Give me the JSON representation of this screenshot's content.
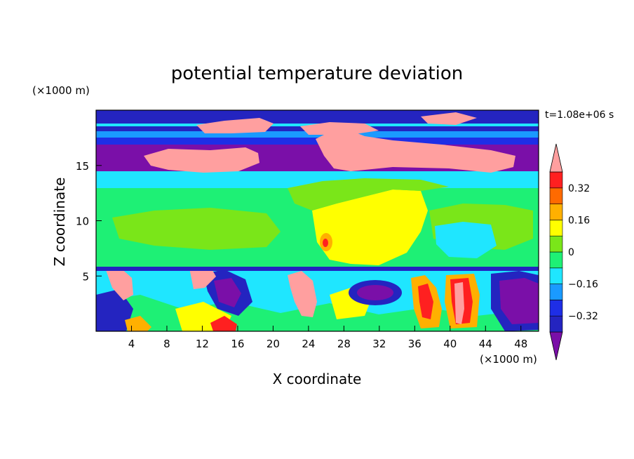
{
  "chart_data": {
    "type": "heatmap",
    "title": "potential temperature deviation",
    "time_label": "t=1.08e+06 s",
    "xlabel": "X coordinate",
    "ylabel": "Z coordinate",
    "x_unit": "(×1000 m)",
    "y_unit": "(×1000 m)",
    "xlim": [
      0,
      50
    ],
    "ylim": [
      0,
      20
    ],
    "x_ticks": [
      4,
      8,
      12,
      16,
      20,
      24,
      28,
      32,
      36,
      40,
      44,
      48
    ],
    "y_ticks": [
      5,
      10,
      15
    ],
    "colorbar": {
      "levels": [
        -0.4,
        -0.32,
        -0.24,
        -0.16,
        -0.08,
        0,
        0.08,
        0.16,
        0.24,
        0.32,
        0.4
      ],
      "labels": [
        "0.32",
        "0.16",
        "0",
        "−0.16",
        "−0.32"
      ],
      "label_values": [
        0.32,
        0.16,
        0,
        -0.16,
        -0.32
      ],
      "colors": [
        "#7a0fa8",
        "#2424c0",
        "#1e2ee6",
        "#1a9aff",
        "#1fe6ff",
        "#1ef075",
        "#7ae619",
        "#ffff00",
        "#ffb000",
        "#ff6a00",
        "#ff2020",
        "#ff9f9f"
      ]
    }
  }
}
